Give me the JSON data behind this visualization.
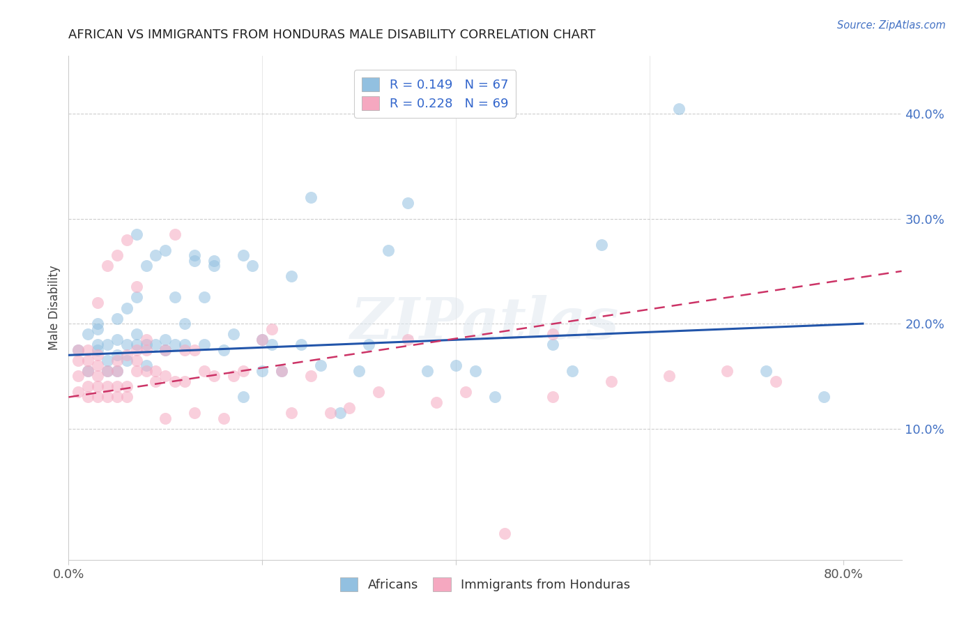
{
  "title": "AFRICAN VS IMMIGRANTS FROM HONDURAS MALE DISABILITY CORRELATION CHART",
  "source_text": "Source: ZipAtlas.com",
  "ylabel": "Male Disability",
  "ytick_labels": [
    "10.0%",
    "20.0%",
    "30.0%",
    "40.0%"
  ],
  "ytick_values": [
    0.1,
    0.2,
    0.3,
    0.4
  ],
  "xlim": [
    0.0,
    0.86
  ],
  "ylim": [
    -0.025,
    0.455
  ],
  "african_color": "#92c0e0",
  "honduras_color": "#f5a8c0",
  "african_line_color": "#2255aa",
  "honduras_line_color": "#cc3366",
  "watermark_text": "ZIPatlas",
  "background_color": "#ffffff",
  "grid_color": "#cccccc",
  "legend_top_labels": [
    "R = 0.149   N = 67",
    "R = 0.228   N = 69"
  ],
  "legend_bottom_labels": [
    "Africans",
    "Immigrants from Honduras"
  ],
  "african_x": [
    0.01,
    0.02,
    0.02,
    0.03,
    0.03,
    0.03,
    0.03,
    0.04,
    0.04,
    0.04,
    0.05,
    0.05,
    0.05,
    0.05,
    0.06,
    0.06,
    0.06,
    0.07,
    0.07,
    0.07,
    0.07,
    0.08,
    0.08,
    0.08,
    0.09,
    0.09,
    0.1,
    0.1,
    0.1,
    0.11,
    0.11,
    0.12,
    0.12,
    0.13,
    0.13,
    0.14,
    0.14,
    0.15,
    0.15,
    0.16,
    0.17,
    0.18,
    0.18,
    0.19,
    0.2,
    0.2,
    0.21,
    0.22,
    0.23,
    0.24,
    0.25,
    0.26,
    0.28,
    0.3,
    0.31,
    0.33,
    0.35,
    0.37,
    0.4,
    0.42,
    0.44,
    0.5,
    0.52,
    0.55,
    0.63,
    0.72,
    0.78
  ],
  "african_y": [
    0.175,
    0.155,
    0.19,
    0.175,
    0.18,
    0.195,
    0.2,
    0.155,
    0.165,
    0.18,
    0.155,
    0.17,
    0.185,
    0.205,
    0.165,
    0.18,
    0.215,
    0.18,
    0.19,
    0.225,
    0.285,
    0.16,
    0.18,
    0.255,
    0.18,
    0.265,
    0.175,
    0.185,
    0.27,
    0.18,
    0.225,
    0.18,
    0.2,
    0.26,
    0.265,
    0.18,
    0.225,
    0.26,
    0.255,
    0.175,
    0.19,
    0.265,
    0.13,
    0.255,
    0.155,
    0.185,
    0.18,
    0.155,
    0.245,
    0.18,
    0.32,
    0.16,
    0.115,
    0.155,
    0.18,
    0.27,
    0.315,
    0.155,
    0.16,
    0.155,
    0.13,
    0.18,
    0.155,
    0.275,
    0.405,
    0.155,
    0.13
  ],
  "honduras_x": [
    0.01,
    0.01,
    0.01,
    0.01,
    0.02,
    0.02,
    0.02,
    0.02,
    0.02,
    0.03,
    0.03,
    0.03,
    0.03,
    0.03,
    0.03,
    0.04,
    0.04,
    0.04,
    0.04,
    0.05,
    0.05,
    0.05,
    0.05,
    0.05,
    0.06,
    0.06,
    0.06,
    0.06,
    0.07,
    0.07,
    0.07,
    0.07,
    0.08,
    0.08,
    0.08,
    0.09,
    0.09,
    0.1,
    0.1,
    0.1,
    0.11,
    0.11,
    0.12,
    0.12,
    0.13,
    0.13,
    0.14,
    0.15,
    0.16,
    0.17,
    0.18,
    0.2,
    0.21,
    0.22,
    0.23,
    0.25,
    0.27,
    0.29,
    0.32,
    0.35,
    0.38,
    0.41,
    0.45,
    0.5,
    0.56,
    0.62,
    0.68,
    0.73,
    0.5
  ],
  "honduras_y": [
    0.135,
    0.15,
    0.165,
    0.175,
    0.13,
    0.14,
    0.155,
    0.165,
    0.175,
    0.13,
    0.14,
    0.15,
    0.16,
    0.17,
    0.22,
    0.13,
    0.14,
    0.155,
    0.255,
    0.13,
    0.14,
    0.155,
    0.165,
    0.265,
    0.13,
    0.14,
    0.17,
    0.28,
    0.155,
    0.165,
    0.175,
    0.235,
    0.155,
    0.175,
    0.185,
    0.145,
    0.155,
    0.11,
    0.15,
    0.175,
    0.145,
    0.285,
    0.145,
    0.175,
    0.115,
    0.175,
    0.155,
    0.15,
    0.11,
    0.15,
    0.155,
    0.185,
    0.195,
    0.155,
    0.115,
    0.15,
    0.115,
    0.12,
    0.135,
    0.185,
    0.125,
    0.135,
    0.0,
    0.13,
    0.145,
    0.15,
    0.155,
    0.145,
    0.19
  ],
  "african_line_start_y": 0.17,
  "african_line_end_y": 0.2,
  "honduras_line_start_y": 0.13,
  "honduras_line_end_y": 0.25
}
